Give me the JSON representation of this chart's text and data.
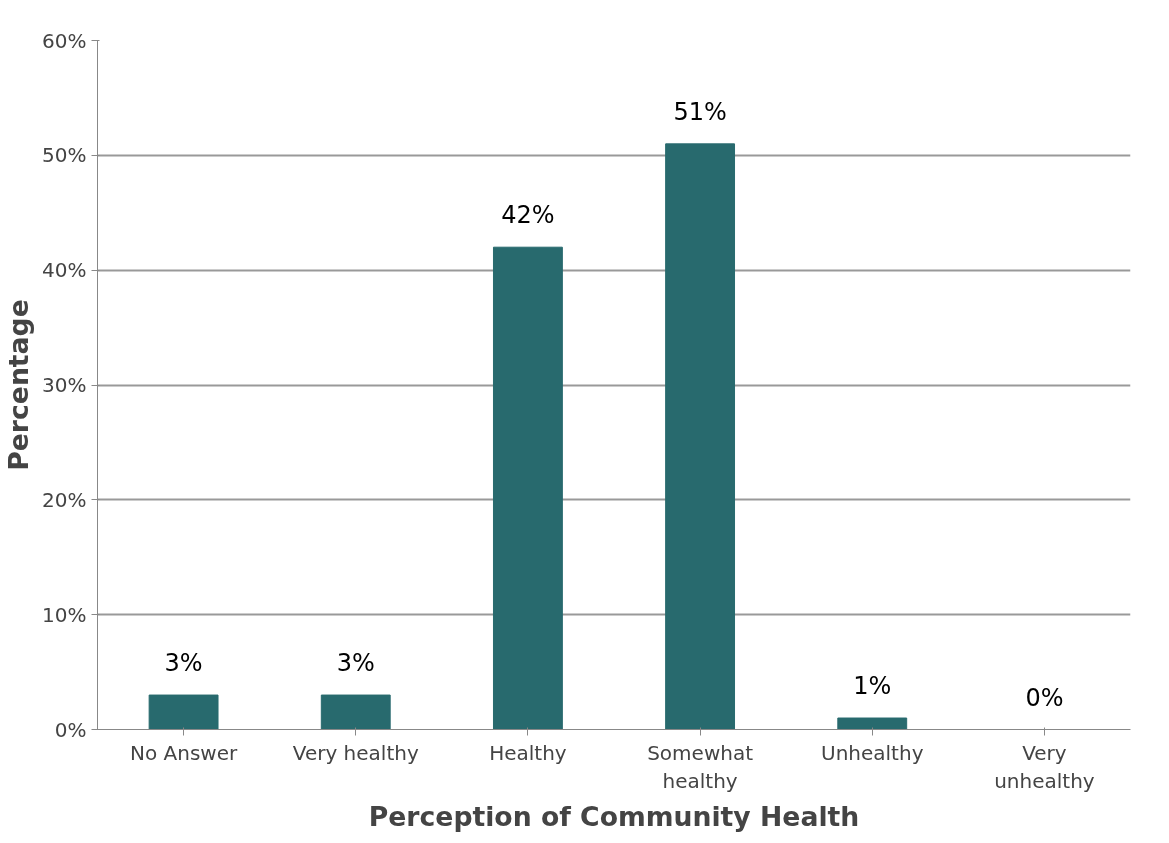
{
  "chart_data": {
    "type": "bar",
    "xlabel": "Perception of Community Health",
    "ylabel": "Percentage",
    "categories": [
      "No Answer",
      "Very healthy",
      "Healthy",
      "Somewhat healthy",
      "Unhealthy",
      "Very unhealthy"
    ],
    "values": [
      3,
      3,
      42,
      51,
      1,
      0
    ],
    "value_labels": [
      "3%",
      "3%",
      "42%",
      "51%",
      "1%",
      "0%"
    ],
    "color": "#286a6e",
    "ylim": [
      0,
      60
    ],
    "yticks": [
      {
        "value": 0,
        "label": "0%"
      },
      {
        "value": 10,
        "label": "10%"
      },
      {
        "value": 20,
        "label": "20%"
      },
      {
        "value": 30,
        "label": "30%"
      },
      {
        "value": 40,
        "label": "40%"
      },
      {
        "value": 50,
        "label": "50%"
      },
      {
        "value": 60,
        "label": "60%"
      }
    ],
    "grid": "y"
  }
}
